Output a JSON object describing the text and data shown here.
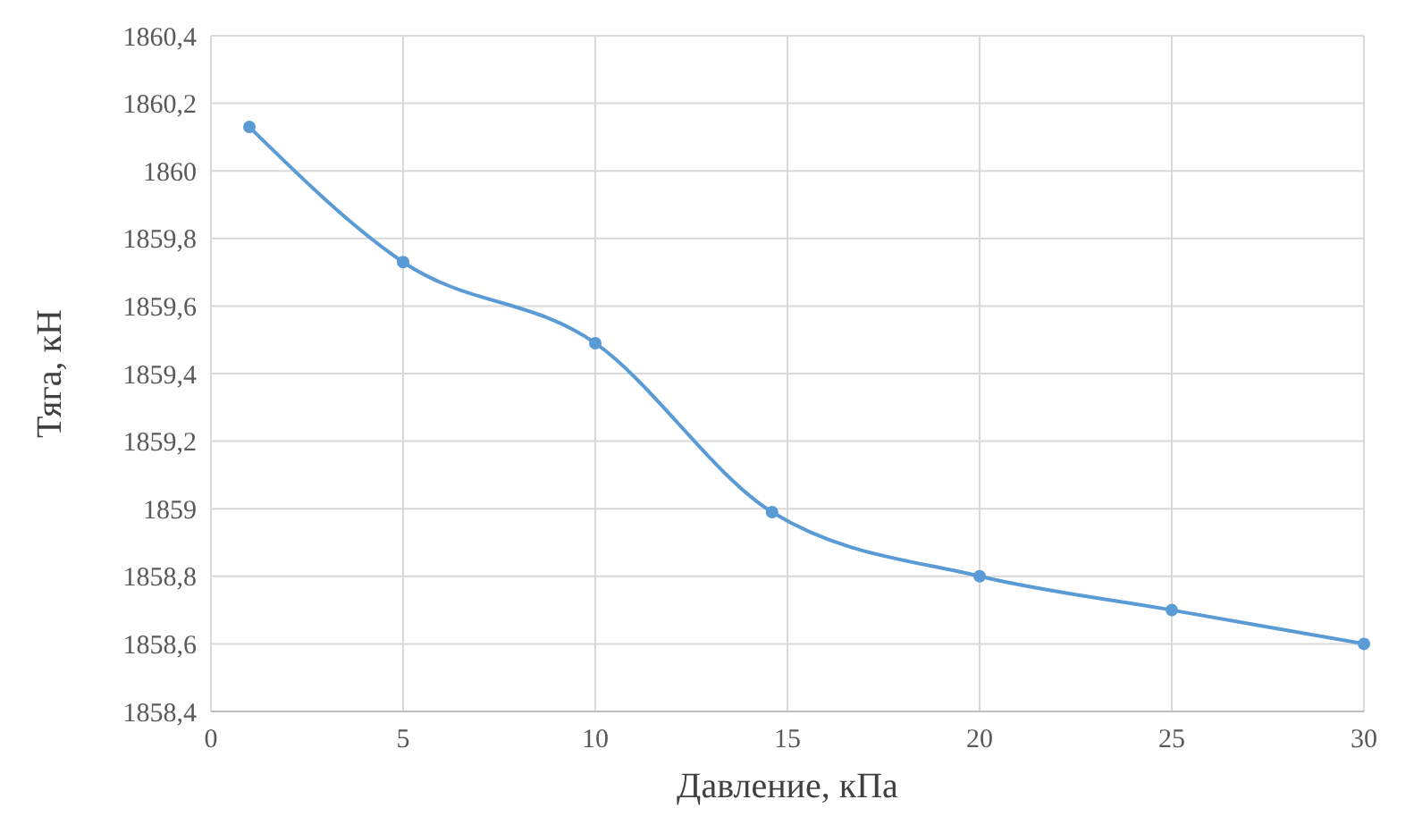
{
  "chart_data": {
    "type": "line",
    "xlabel": "Давление, кПа",
    "ylabel": "Тяга, кН",
    "x": [
      1,
      5,
      10,
      14.6,
      20,
      25,
      30
    ],
    "series": [
      {
        "color": "#5b9bd5",
        "values": [
          1860.13,
          1859.73,
          1859.49,
          1858.99,
          1858.8,
          1858.7,
          1858.6
        ]
      }
    ],
    "xlim": [
      0,
      30
    ],
    "xticks": [
      0,
      5,
      10,
      15,
      20,
      25,
      30
    ],
    "ylim": [
      1858.4,
      1860.4
    ],
    "yticks": [
      {
        "value": 1858.4,
        "label": "1858,4"
      },
      {
        "value": 1858.6,
        "label": "1858,6"
      },
      {
        "value": 1858.8,
        "label": "1858,8"
      },
      {
        "value": 1859,
        "label": "1859"
      },
      {
        "value": 1859.2,
        "label": "1859,2"
      },
      {
        "value": 1859.4,
        "label": "1859,4"
      },
      {
        "value": 1859.6,
        "label": "1859,6"
      },
      {
        "value": 1859.8,
        "label": "1859,8"
      },
      {
        "value": 1860,
        "label": "1860"
      },
      {
        "value": 1860.2,
        "label": "1860,2"
      },
      {
        "value": 1860.4,
        "label": "1860,4"
      }
    ],
    "grid": true,
    "marker": "circle",
    "line_style": "solid"
  }
}
